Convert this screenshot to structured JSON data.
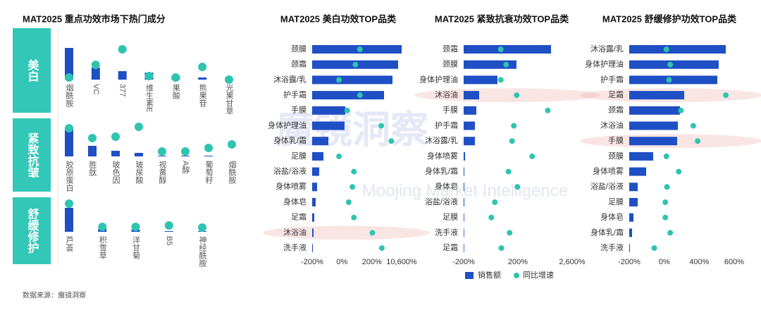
{
  "source": "数据来源：魔镜洞察",
  "watermark": {
    "title": "魔镜洞察",
    "subtitle": "Moojing Market Intelligence"
  },
  "legend": [
    "销售额",
    "同比增速"
  ],
  "chart_data": [
    {
      "type": "ingredient",
      "title": "MAT2025 重点功效市场下热门成分",
      "ylim": [
        0,
        50
      ],
      "bar_color": "#1f4fc4",
      "dot_color": "#2ec4b0",
      "groups": [
        {
          "label": "美白",
          "categories": [
            "烟酰胺",
            "VC",
            "377",
            "维生素E",
            "果酸",
            "熊果苷",
            "光果甘草"
          ],
          "bars": [
            45,
            17,
            12,
            10,
            5,
            3,
            1
          ],
          "dots": [
            3,
            21,
            43,
            5,
            3,
            18,
            0
          ]
        },
        {
          "label": "紧致抗皱",
          "categories": [
            "胶原蛋白",
            "胜肽",
            "玻色因",
            "玻尿酸",
            "视黄醇",
            "A醇",
            "葡萄籽",
            "烟酰胺"
          ],
          "bars": [
            40,
            15,
            8,
            5,
            1,
            1,
            1,
            0
          ],
          "dots": [
            40,
            26,
            28,
            42,
            7,
            7,
            12,
            17
          ]
        },
        {
          "label": "舒缓修护",
          "categories": [
            "芦荟",
            "积雪草",
            "洋甘菊",
            "B5",
            "神经酰胺"
          ],
          "bars": [
            34,
            4,
            3,
            1,
            1
          ],
          "dots": [
            40,
            7,
            7,
            9,
            6
          ]
        }
      ]
    },
    {
      "type": "hbar",
      "title": "MAT2025 美白功效TOP品类",
      "categories": [
        "颈膜",
        "颈霜",
        "沐浴露/乳",
        "护手霜",
        "手膜",
        "身体护理油",
        "身体乳/霜",
        "足膜",
        "浴盐/浴液",
        "身体喷雾",
        "身体皂",
        "足霜",
        "沐浴油",
        "洗手液"
      ],
      "series": [
        {
          "color": "#1f4fc4",
          "axis": "x2",
          "values": [
            127,
            122,
            114,
            102,
            47,
            46,
            23,
            16,
            10,
            7,
            5,
            3,
            2,
            1
          ]
        },
        {
          "color": "#2ec4b0",
          "values": [
            120,
            90,
            -20,
            120,
            35,
            3500,
            7000,
            -20,
            80,
            70,
            45,
            80,
            400,
            3700
          ]
        }
      ],
      "x2lim": [
        0,
        127
      ],
      "xlim": [
        -200,
        10600
      ],
      "xticks": [
        {
          "value": -200,
          "label": "-200%"
        },
        {
          "value": 0,
          "label": "0%"
        },
        {
          "value": 200,
          "label": "200%"
        },
        {
          "value": 10600,
          "label": "10,600%"
        }
      ],
      "axis_break": true,
      "highlight": [
        12
      ]
    },
    {
      "type": "hbar",
      "title": "MAT2025 紧致抗衰功效TOP品类",
      "categories": [
        "颈霜",
        "颈膜",
        "身体护理油",
        "沐浴油",
        "手膜",
        "护手霜",
        "沐浴露/乳",
        "身体喷雾",
        "身体乳/霜",
        "身体皂",
        "浴盐/浴液",
        "足膜",
        "洗手液",
        "足霜"
      ],
      "series": [
        {
          "color": "#1f4fc4",
          "axis": "x2",
          "values": [
            124,
            75,
            48,
            22,
            18,
            16,
            16,
            2,
            1,
            1,
            1,
            0.5,
            0.5,
            0.3
          ]
        },
        {
          "color": "#2ec4b0",
          "values": [
            74,
            113,
            74,
            191,
            1520,
            170,
            157,
            830,
            130,
            196,
            30,
            4,
            139,
            78
          ]
        }
      ],
      "x2lim": [
        0,
        154
      ],
      "xlim": [
        -200,
        2600
      ],
      "xticks": [
        {
          "value": -200,
          "label": "-200%"
        },
        {
          "value": 200,
          "label": "200%"
        },
        {
          "value": 2600,
          "label": "2,600%"
        }
      ],
      "axis_break": true,
      "highlight": [
        3
      ]
    },
    {
      "type": "hbar",
      "title": "MAT2025 舒缓修护功效TOP品类",
      "categories": [
        "沐浴露/乳",
        "身体护理油",
        "护手霜",
        "足霜",
        "颈霜",
        "沐浴油",
        "手膜",
        "颈膜",
        "身体喷雾",
        "浴盐/浴液",
        "足膜",
        "身体皂",
        "身体乳/霜",
        "洗手液"
      ],
      "series": [
        {
          "color": "#1f4fc4",
          "axis": "x2",
          "values": [
            137,
            127,
            125,
            78,
            72,
            69,
            68,
            34,
            24,
            12,
            12,
            6,
            4,
            1
          ]
        },
        {
          "color": "#2ec4b0",
          "values": [
            25,
            68,
            55,
            552,
            191,
            332,
            382,
            25,
            166,
            31,
            12,
            12,
            68,
            -57
          ]
        }
      ],
      "x2lim": [
        0,
        149
      ],
      "xlim": [
        -200,
        600
      ],
      "xticks": [
        {
          "value": -200,
          "label": "-200%"
        },
        {
          "value": 0,
          "label": "0%"
        },
        {
          "value": 400,
          "label": "400%"
        },
        {
          "value": 600,
          "label": "600%"
        }
      ],
      "axis_break": true,
      "highlight": [
        3,
        6
      ]
    }
  ]
}
